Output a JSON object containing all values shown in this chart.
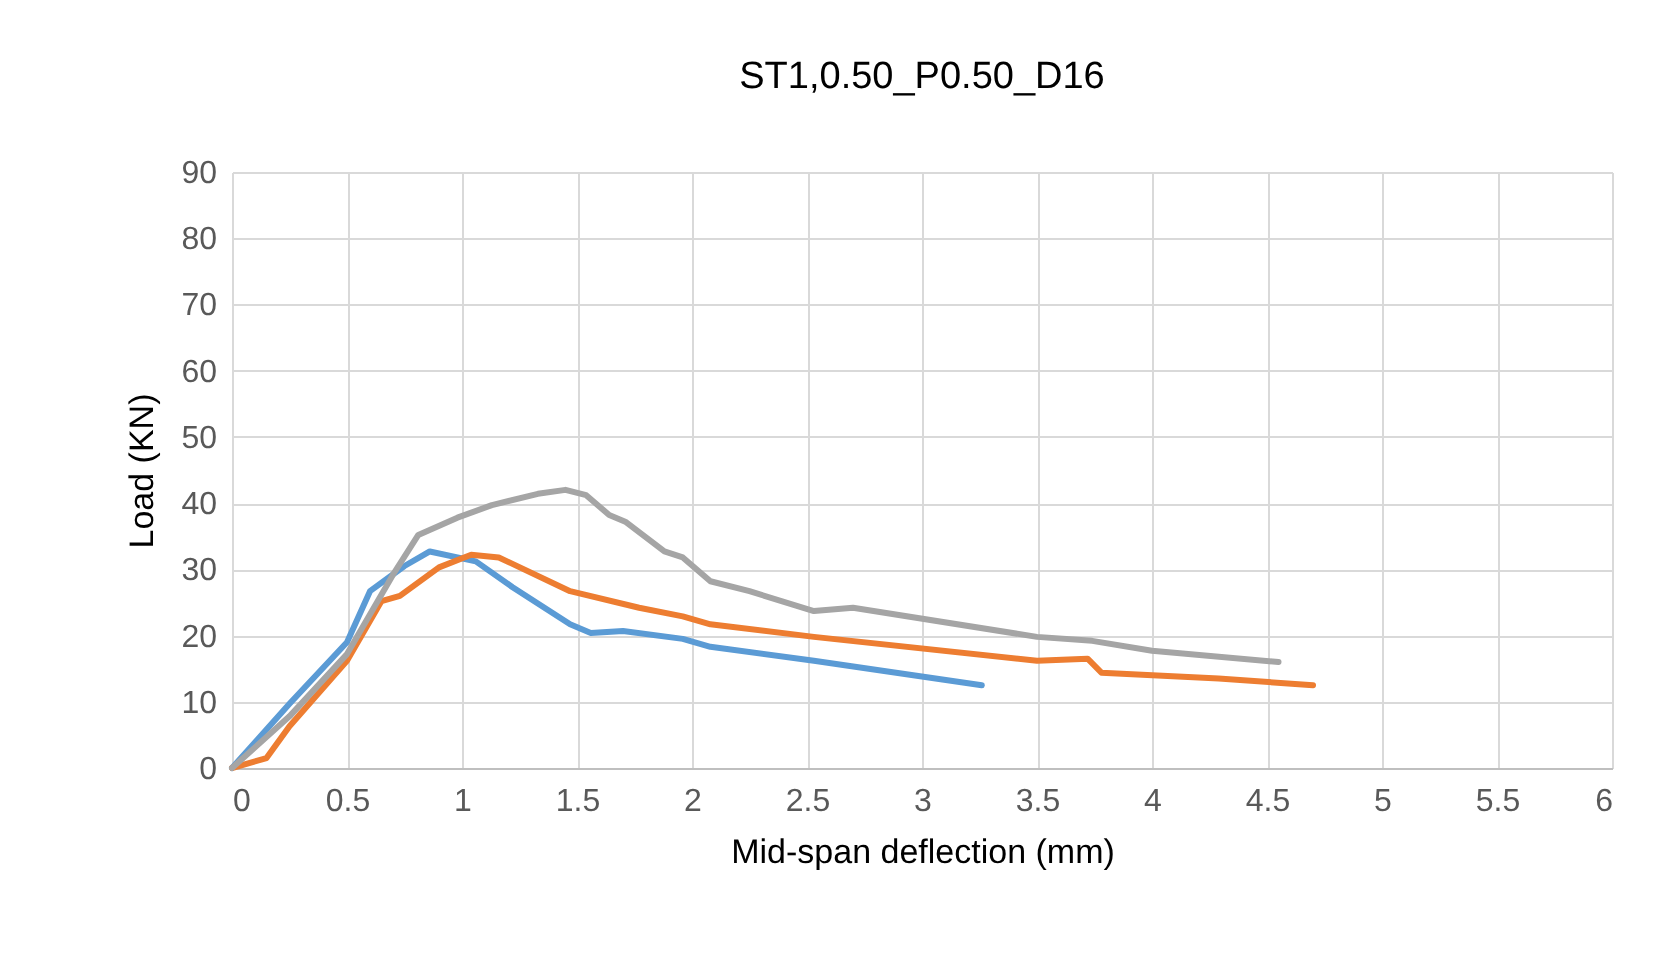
{
  "chart_data": {
    "type": "line",
    "title": "ST1,0.50_P0.50_D16",
    "xlabel": "Mid-span deflection (mm)",
    "ylabel": "Load (KN)",
    "xlim": [
      0,
      6
    ],
    "xticks": [
      0,
      0.5,
      1,
      1.5,
      2,
      2.5,
      3,
      3.5,
      4,
      4.5,
      5,
      5.5,
      6
    ],
    "ylim": [
      0,
      90
    ],
    "yticks": [
      0,
      10,
      20,
      30,
      40,
      50,
      60,
      70,
      80,
      90
    ],
    "grid": true,
    "line_style": "solid",
    "marker": "none",
    "series": [
      {
        "color": "#5b9bd5",
        "x": [
          0,
          0.25,
          0.5,
          0.6,
          0.75,
          0.86,
          1.06,
          1.22,
          1.47,
          1.56,
          1.7,
          1.96,
          2.08,
          2.53,
          3.26
        ],
        "values": [
          0,
          9.7,
          19,
          26.7,
          30.5,
          32.7,
          31.2,
          27.3,
          21.7,
          20.4,
          20.7,
          19.5,
          18.3,
          16.2,
          12.5
        ]
      },
      {
        "color": "#ed7d31",
        "x": [
          0,
          0.15,
          0.25,
          0.5,
          0.65,
          0.73,
          0.9,
          1.04,
          1.16,
          1.47,
          1.77,
          1.96,
          2.08,
          2.53,
          3.5,
          3.72,
          3.78,
          4.29,
          4.7
        ],
        "values": [
          0,
          1.5,
          6.3,
          16.2,
          25.2,
          26,
          30.3,
          32.2,
          31.8,
          26.7,
          24.2,
          22.9,
          21.7,
          19.8,
          16.2,
          16.5,
          14.4,
          13.5,
          12.5
        ]
      },
      {
        "color": "#a5a5a5",
        "x": [
          0,
          0.25,
          0.5,
          0.7,
          0.81,
          0.98,
          1.13,
          1.33,
          1.45,
          1.54,
          1.64,
          1.71,
          1.88,
          1.96,
          2.08,
          2.25,
          2.53,
          2.7,
          3.5,
          3.74,
          4,
          4.55
        ],
        "values": [
          0,
          7.8,
          17.2,
          29.2,
          35.2,
          37.8,
          39.7,
          41.4,
          42,
          41.2,
          38.2,
          37.2,
          32.7,
          31.8,
          28.2,
          26.7,
          23.7,
          24.2,
          19.8,
          19.2,
          17.7,
          16
        ]
      }
    ]
  }
}
